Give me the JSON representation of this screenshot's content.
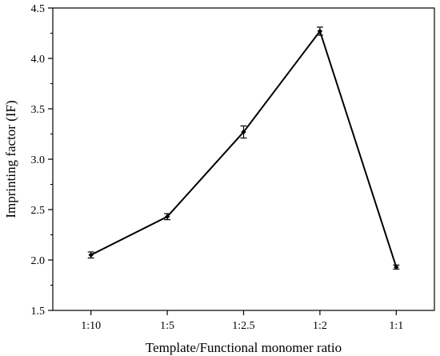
{
  "chart_data": {
    "type": "line",
    "title": "",
    "xlabel": "Template/Functional monomer ratio",
    "ylabel": "Imprinting factor (IF)",
    "categories": [
      "1:10",
      "1:5",
      "1:2.5",
      "1:2",
      "1:1"
    ],
    "series": [
      {
        "values": [
          2.05,
          2.43,
          3.27,
          4.27,
          1.93
        ],
        "errors": [
          0.03,
          0.03,
          0.06,
          0.04,
          0.02
        ],
        "color": "#000000"
      }
    ],
    "ylim": [
      1.5,
      4.5
    ],
    "yticks": [
      "1.5",
      "2.0",
      "2.5",
      "3.0",
      "3.5",
      "4.0",
      "4.5"
    ],
    "grid": false,
    "legend": "none"
  }
}
